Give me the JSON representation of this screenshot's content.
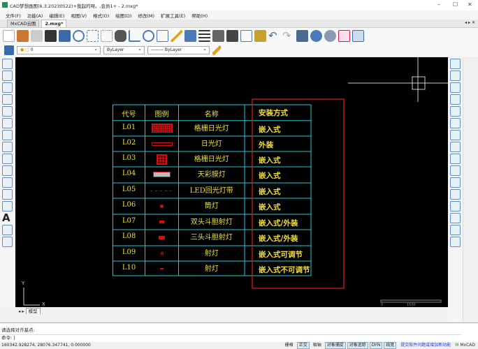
{
  "window": {
    "title": "CAD梦想画图(6.3.20230522)+我起的呀。,会员1+ - 2.mxg*",
    "minimize": "–",
    "maximize": "☐",
    "close": "✕"
  },
  "menu": [
    "文件(F)",
    "功能(A)",
    "编辑(E)",
    "视图(V)",
    "格式(O)",
    "绘图(D)",
    "修改(M)",
    "扩展工具(E)",
    "帮助(H)"
  ],
  "tabs": [
    {
      "label": "MxCAD云图",
      "active": false
    },
    {
      "label": "2.mxg*",
      "active": true
    }
  ],
  "tab_controls": "◂ ▸ ✕",
  "layer_bar": {
    "layer": "0",
    "color": "ByLayer",
    "linetype": "ByLayer"
  },
  "table": {
    "headers": [
      "代号",
      "图例",
      "名称",
      "",
      "安装方式"
    ],
    "rows": [
      {
        "code": "L01",
        "name": "格栅日光灯",
        "install": "嵌入式",
        "symbol": "grid-large"
      },
      {
        "code": "L02",
        "name": "日光灯",
        "install": "外装",
        "symbol": "bar"
      },
      {
        "code": "L03",
        "name": "格栅日光灯",
        "install": "嵌入式",
        "symbol": "grid-square"
      },
      {
        "code": "L04",
        "name": "天彩膜灯",
        "install": "嵌入式",
        "symbol": "gray-bar"
      },
      {
        "code": "L05",
        "name": "LED回光灯带",
        "install": "嵌入式",
        "symbol": "dashed"
      },
      {
        "code": "L06",
        "name": "筒灯",
        "install": "嵌入式",
        "symbol": "dot"
      },
      {
        "code": "L07",
        "name": "双头斗胆射灯",
        "install": "嵌入式/外装",
        "symbol": "small-rect"
      },
      {
        "code": "L08",
        "name": "三头斗胆射灯",
        "install": "嵌入式/外装",
        "symbol": "rect"
      },
      {
        "code": "L09",
        "name": "射灯",
        "install": "嵌入式可调节",
        "symbol": "ring"
      },
      {
        "code": "L10",
        "name": "射灯",
        "install": "嵌入式不可调节",
        "symbol": "cross"
      }
    ]
  },
  "colors": {
    "grid": "#22c8d0",
    "text": "#e8e040",
    "highlight": "#e02020",
    "symbol": "#d01010"
  },
  "ucs": {
    "x": "X",
    "y": "Y"
  },
  "scale_bar": {
    "zero": "0",
    "mid": "1500"
  },
  "model_tab": "模型",
  "command": {
    "history": "请选择对齐基点:",
    "prompt": "命令:"
  },
  "status": {
    "coords": "160342.928274,  28076.347741,  0.000000",
    "toggles": [
      {
        "label": "栅格",
        "on": false
      },
      {
        "label": "正交",
        "on": true
      },
      {
        "label": "极轴",
        "on": false
      },
      {
        "label": "对象捕捉",
        "on": true
      },
      {
        "label": "对象追踪",
        "on": true
      },
      {
        "label": "DYN",
        "on": true
      },
      {
        "label": "线宽",
        "on": true
      }
    ],
    "feedback_link": "提交软件问题或增加新功能",
    "brand": "MxCAD"
  }
}
